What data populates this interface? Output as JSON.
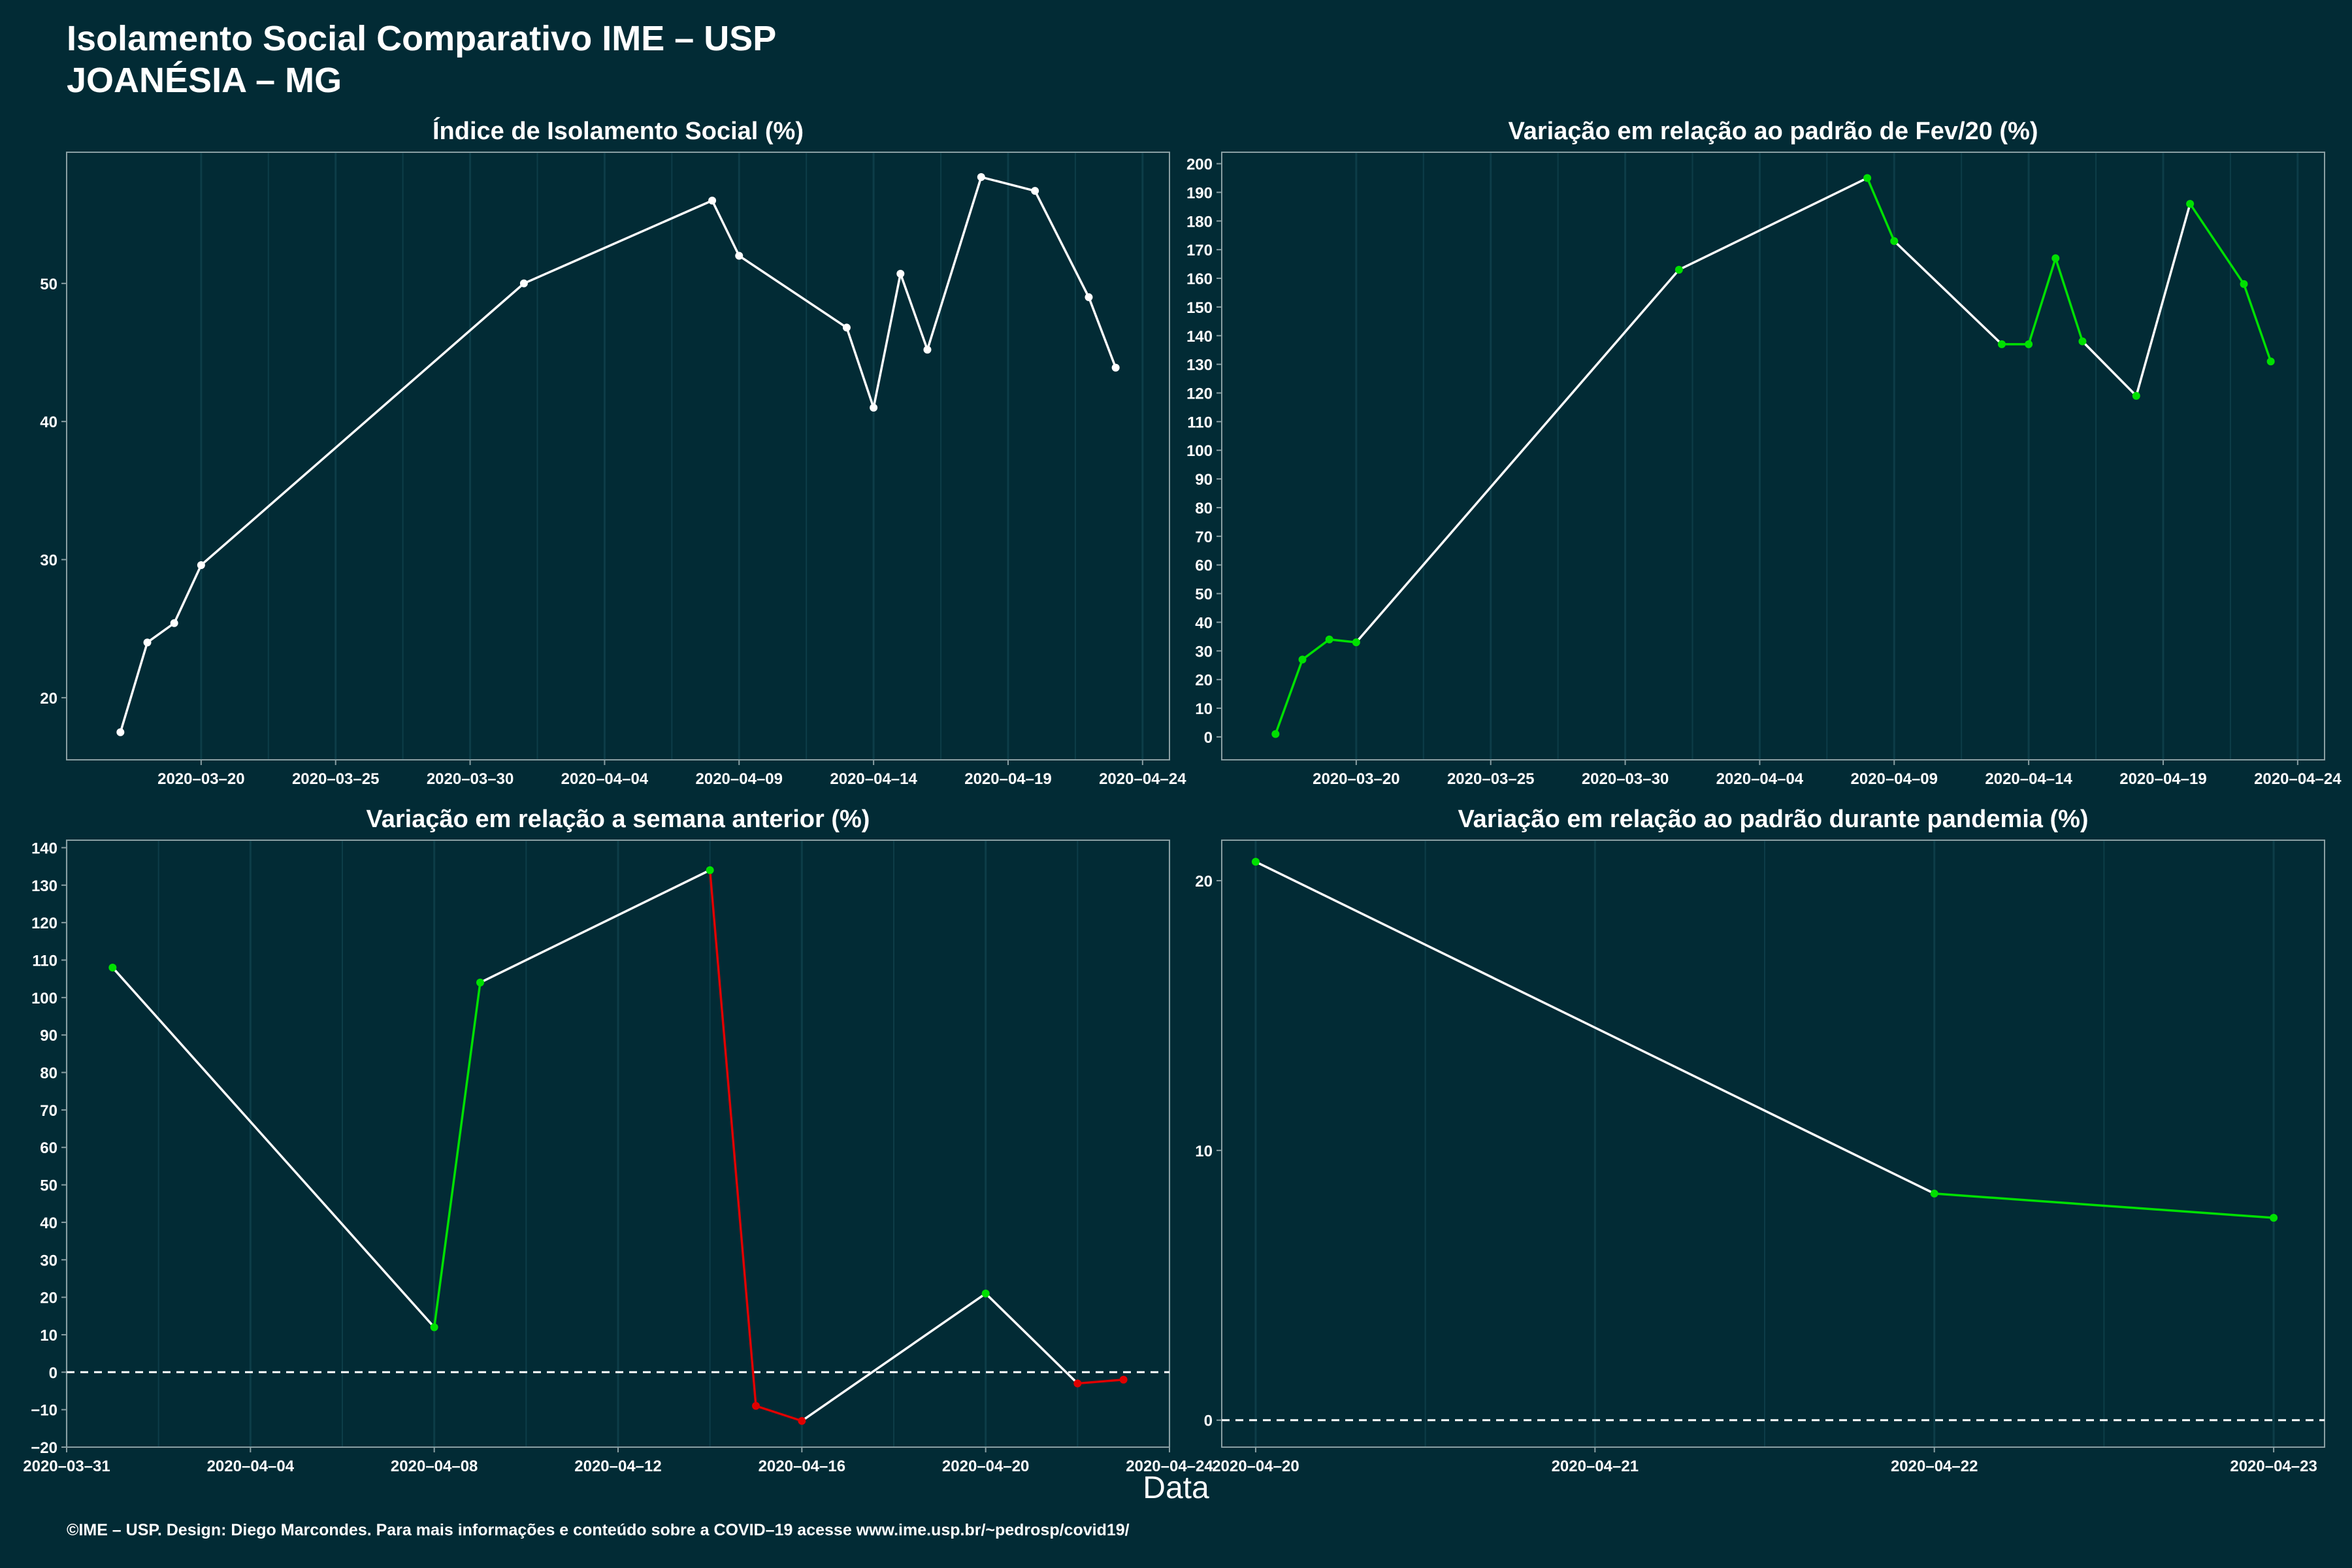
{
  "header": {
    "title": "Isolamento Social Comparativo IME – USP",
    "subtitle": "JOANÉSIA – MG"
  },
  "x_axis_label": "Data",
  "footer": "©IME – USP. Design: Diego Marcondes. Para mais informações e conteúdo sobre a COVID–19 acesse www.ime.usp.br/~pedrosp/covid19/",
  "colors": {
    "background": "#022b35",
    "line": "#ffffff",
    "up": "#00e000",
    "down": "#e00000",
    "grid": "#0d3d48"
  },
  "chart_data": [
    {
      "type": "line",
      "title": "Índice de Isolamento Social (%)",
      "x_ticks": [
        "2020–03–20",
        "2020–03–25",
        "2020–03–30",
        "2020–04–04",
        "2020–04–09",
        "2020–04–14",
        "2020–04–19",
        "2020–04–24"
      ],
      "y_ticks": [
        "20",
        "30",
        "40",
        "50"
      ],
      "x": [
        "2020-03-17",
        "2020-03-18",
        "2020-03-19",
        "2020-03-20",
        "2020-04-01",
        "2020-04-08",
        "2020-04-09",
        "2020-04-13",
        "2020-04-14",
        "2020-04-15",
        "2020-04-16",
        "2020-04-18",
        "2020-04-20",
        "2020-04-22",
        "2020-04-23"
      ],
      "y": [
        17.5,
        24.0,
        25.4,
        29.6,
        50.0,
        56.0,
        52.0,
        46.8,
        41.0,
        50.7,
        45.2,
        57.7,
        56.7,
        49.0,
        43.9
      ],
      "ylim": [
        15.5,
        59.5
      ],
      "xlim": [
        "2020-03-15",
        "2020-04-25"
      ],
      "zero_line": false
    },
    {
      "type": "line",
      "title": "Variação em relação ao padrão de Fev/20 (%)",
      "x_ticks": [
        "2020–03–20",
        "2020–03–25",
        "2020–03–30",
        "2020–04–04",
        "2020–04–09",
        "2020–04–14",
        "2020–04–19",
        "2020–04–24"
      ],
      "y_ticks": [
        "0",
        "10",
        "20",
        "30",
        "40",
        "50",
        "60",
        "70",
        "80",
        "90",
        "100",
        "110",
        "120",
        "130",
        "140",
        "150",
        "160",
        "170",
        "180",
        "190",
        "200"
      ],
      "x": [
        "2020-03-17",
        "2020-03-18",
        "2020-03-19",
        "2020-03-20",
        "2020-04-01",
        "2020-04-08",
        "2020-04-09",
        "2020-04-13",
        "2020-04-14",
        "2020-04-15",
        "2020-04-16",
        "2020-04-18",
        "2020-04-20",
        "2020-04-22",
        "2020-04-23"
      ],
      "y": [
        1,
        27,
        34,
        33,
        163,
        195,
        173,
        137,
        137,
        167,
        138,
        119,
        186,
        158,
        131
      ],
      "ylim": [
        -8,
        204
      ],
      "xlim": [
        "2020-03-15",
        "2020-04-25"
      ],
      "zero_line": false
    },
    {
      "type": "line",
      "title": "Variação em relação a semana anterior (%)",
      "x_ticks": [
        "2020–03–31",
        "2020–04–04",
        "2020–04–08",
        "2020–04–12",
        "2020–04–16",
        "2020–04–20",
        "2020–04–24"
      ],
      "y_ticks": [
        "−20",
        "−10",
        "0",
        "10",
        "20",
        "30",
        "40",
        "50",
        "60",
        "70",
        "80",
        "90",
        "100",
        "110",
        "120",
        "130",
        "140"
      ],
      "x": [
        "2020-04-01",
        "2020-04-08",
        "2020-04-09",
        "2020-04-14",
        "2020-04-15",
        "2020-04-16",
        "2020-04-20",
        "2020-04-22",
        "2020-04-23"
      ],
      "y": [
        108,
        12,
        104,
        134,
        -9,
        -13,
        21,
        -3,
        -2
      ],
      "ylim": [
        -20,
        142
      ],
      "xlim": [
        "2020-03-31",
        "2020-04-24"
      ],
      "zero_line": true
    },
    {
      "type": "line",
      "title": "Variação em relação ao padrão durante pandemia (%)",
      "x_ticks": [
        "2020–04–20",
        "2020–04–21",
        "2020–04–22",
        "2020–04–23"
      ],
      "y_ticks": [
        "0",
        "10",
        "20"
      ],
      "x": [
        "2020-04-20",
        "2020-04-22",
        "2020-04-23"
      ],
      "y": [
        20.7,
        8.4,
        7.5
      ],
      "ylim": [
        -1.0,
        21.5
      ],
      "xlim": [
        "2020-04-19.9",
        "2020-04-23.15"
      ],
      "zero_line": true
    }
  ]
}
